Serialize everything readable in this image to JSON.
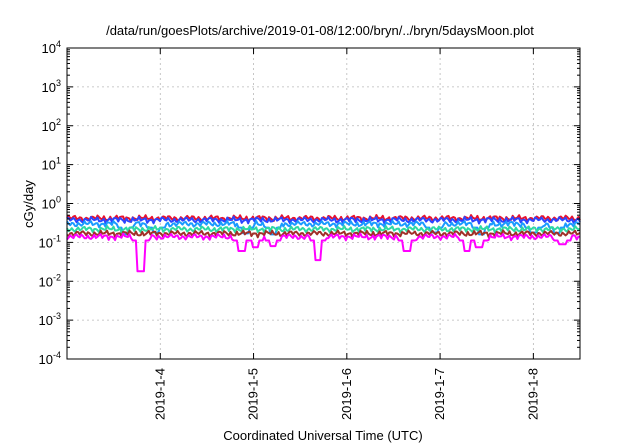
{
  "chart_data": {
    "type": "line",
    "title": "/data/run/goesPlots/archive/2019-01-08/12:00/bryn/../bryn/5daysMoon.plot",
    "xlabel": "Coordinated Universal Time (UTC)",
    "ylabel": "cGy/day",
    "yscale": "log",
    "ylim": [
      0.0001,
      10000
    ],
    "xlim": [
      "2019-01-03 00:00",
      "2019-01-08 12:00"
    ],
    "grid": true,
    "y_tick_labels": [
      {
        "base": "10",
        "exp": "-4"
      },
      {
        "base": "10",
        "exp": "-3"
      },
      {
        "base": "10",
        "exp": "-2"
      },
      {
        "base": "10",
        "exp": "-1"
      },
      {
        "base": "10",
        "exp": "0"
      },
      {
        "base": "10",
        "exp": "1"
      },
      {
        "base": "10",
        "exp": "2"
      },
      {
        "base": "10",
        "exp": "3"
      },
      {
        "base": "10",
        "exp": "4"
      }
    ],
    "x_ticks": [
      {
        "label": "2019-1-4",
        "date": "2019-01-04"
      },
      {
        "label": "2019-1-5",
        "date": "2019-01-05"
      },
      {
        "label": "2019-1-6",
        "date": "2019-01-06"
      },
      {
        "label": "2019-1-7",
        "date": "2019-01-07"
      },
      {
        "label": "2019-1-8",
        "date": "2019-01-08"
      }
    ],
    "series": [
      {
        "color": "#e8112d",
        "level": 0.42,
        "dips": []
      },
      {
        "color": "#2b45ff",
        "level": 0.38,
        "dips": []
      },
      {
        "color": "#1a9bff",
        "level": 0.3,
        "dips": [
          [
            "2019-01-03 15:00",
            0.16
          ],
          [
            "2019-01-03 23:00",
            0.18
          ],
          [
            "2019-01-04 22:00",
            0.17
          ],
          [
            "2019-01-05 05:00",
            0.16
          ],
          [
            "2019-01-06 22:30",
            0.18
          ],
          [
            "2019-01-07 10:30",
            0.16
          ],
          [
            "2019-01-08 00:00",
            0.18
          ],
          [
            "2019-01-08 06:00",
            0.17
          ]
        ]
      },
      {
        "color": "#2fd9a3",
        "level": 0.22,
        "dips": []
      },
      {
        "color": "#a03028",
        "level": 0.17,
        "dips": []
      },
      {
        "color": "#ff00ff",
        "level": 0.14,
        "dips": [
          [
            "2019-01-03 19:00",
            0.018
          ],
          [
            "2019-01-04 21:00",
            0.06
          ],
          [
            "2019-01-05 00:30",
            0.075
          ],
          [
            "2019-01-05 05:00",
            0.08
          ],
          [
            "2019-01-05 16:30",
            0.035
          ],
          [
            "2019-01-06 15:30",
            0.06
          ],
          [
            "2019-01-07 07:00",
            0.06
          ],
          [
            "2019-01-07 10:00",
            0.075
          ],
          [
            "2019-01-08 07:30",
            0.09
          ]
        ]
      }
    ]
  }
}
